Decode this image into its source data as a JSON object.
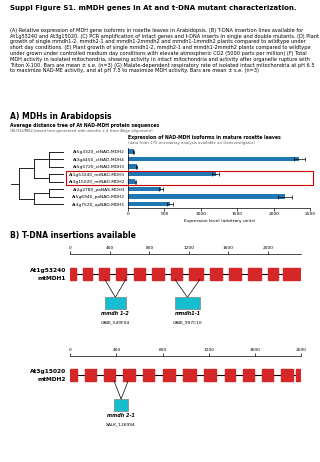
{
  "title": "Suppl Figure S1. mMDH genes in At and t-DNA mutant characterization.",
  "caption": "(A) Relative expression of MDH gene isoforms in rosette leaves in Arabidopsis. (B) T-DNA insertion lines available for At1g53240 and At3g15020. (C) PCR amplification of intact genes and t-DNA inserts in single and double mutants. (D) Plant growth of single mmdh1-2, mmdh2-1 and mmdh1-2mmdh2 and mmdh1-1mmdh2 plants compared to wildtype under short day conditions. (E) Plant growth of single mmdh1-2, mmdh2-1 and mmdh1-2mmdh2 plants compared to wildtype under grown under controlled medium day conditions with elevate atmospheric CO2 (5000 parts per million) (F) Total MDH activity in isolated mitochondria, showing activity in intact mitochondria and activity after organelle rupture with Triton X-100. Bars are mean ± s.e. (n=3) (G) Malate-dependent respiratory rate of isolated intact mitochondria at pH 6.5 to maximize NAD-ME activity, and at pH 7.5 to maximize MDH activity. Bars are mean ± s.e. (n=3)",
  "chart_data": [
    {
      "type": "bar",
      "orientation": "horizontal",
      "heading": "A) MDHs in Arabidopsis",
      "tree_title": "Average distance tree of At NAD-MDH protein sequences",
      "tree_subtitle": "(BLOSUM62-based tree generated with dendro 2.4 from Align alignment)",
      "tree": [
        [
          [
            0,
            1,
            2
          ],
          [
            3,
            4
          ]
        ],
        [
          [
            5,
            6
          ],
          7
        ]
      ],
      "title": "Expression of NAD-MDH isoforms in mature rosette leaves",
      "subtitle": "(data from 175 microarray analysis available on Genevestigator)",
      "categories": [
        "At5g3320_ctNAD-MDH2",
        "At3g4450_ctNAD-MDH4",
        "At5g5720_ctNAD-MDH3",
        "At1g53240_mtNAD-MDH1",
        "At3g15020_mtNAD-MDH2",
        "At2g2780_paNAS-MDH3",
        "At5g6940_paNAD-MDH2",
        "At3g7520_upNAD-MDH1"
      ],
      "values": [
        80,
        2350,
        120,
        1200,
        100,
        450,
        2150,
        580
      ],
      "errors": [
        5,
        80,
        10,
        50,
        10,
        30,
        100,
        40
      ],
      "highlight": [
        3,
        4
      ],
      "highlight_color": "#cc0000",
      "xlim": [
        0,
        2500
      ],
      "xticks": [
        0,
        500,
        1000,
        1500,
        2000,
        2500
      ],
      "xlabel": "Expression level (arbitrary units)"
    },
    {
      "type": "gene",
      "heading": "B) T-DNA insertions available",
      "title": "At1g53240",
      "subtitle": "mtMDH1",
      "xlim": [
        0,
        2333
      ],
      "xticks": [
        0,
        400,
        800,
        1200,
        1600,
        2000
      ],
      "tick_labels": "x",
      "exons": [
        [
          0,
          55
        ],
        [
          130,
          215
        ],
        [
          285,
          390
        ],
        [
          460,
          565
        ],
        [
          640,
          755
        ],
        [
          825,
          945
        ],
        [
          1015,
          1135
        ],
        [
          1205,
          1345
        ],
        [
          1415,
          1535
        ],
        [
          1605,
          1725
        ],
        [
          1795,
          1925
        ],
        [
          2005,
          2105
        ],
        [
          2155,
          2333
        ]
      ],
      "inserts": [
        {
          "name": "mmdh 1-2",
          "label": "GABI_540F04",
          "start": 350,
          "end": 560
        },
        {
          "name": "mmdh1-1",
          "label": "GABI_997C10",
          "start": 1060,
          "end": 1310
        }
      ]
    },
    {
      "type": "gene",
      "title": "At3g15020",
      "subtitle": "mtMDH2",
      "xlim": [
        0,
        2000
      ],
      "xticks": [
        0,
        400,
        800,
        1200,
        1600,
        2000
      ],
      "tick_labels": "x",
      "exons": [
        [
          0,
          60
        ],
        [
          130,
          220
        ],
        [
          290,
          390
        ],
        [
          460,
          560
        ],
        [
          630,
          730
        ],
        [
          800,
          910
        ],
        [
          980,
          1090
        ],
        [
          1160,
          1260
        ],
        [
          1340,
          1430
        ],
        [
          1500,
          1590
        ],
        [
          1660,
          1760
        ],
        [
          1830,
          1930
        ],
        [
          1960,
          2000
        ]
      ],
      "inserts": [
        {
          "name": "mmdh 2-1",
          "label": "SALK_126994",
          "start": 380,
          "end": 500
        }
      ]
    }
  ]
}
